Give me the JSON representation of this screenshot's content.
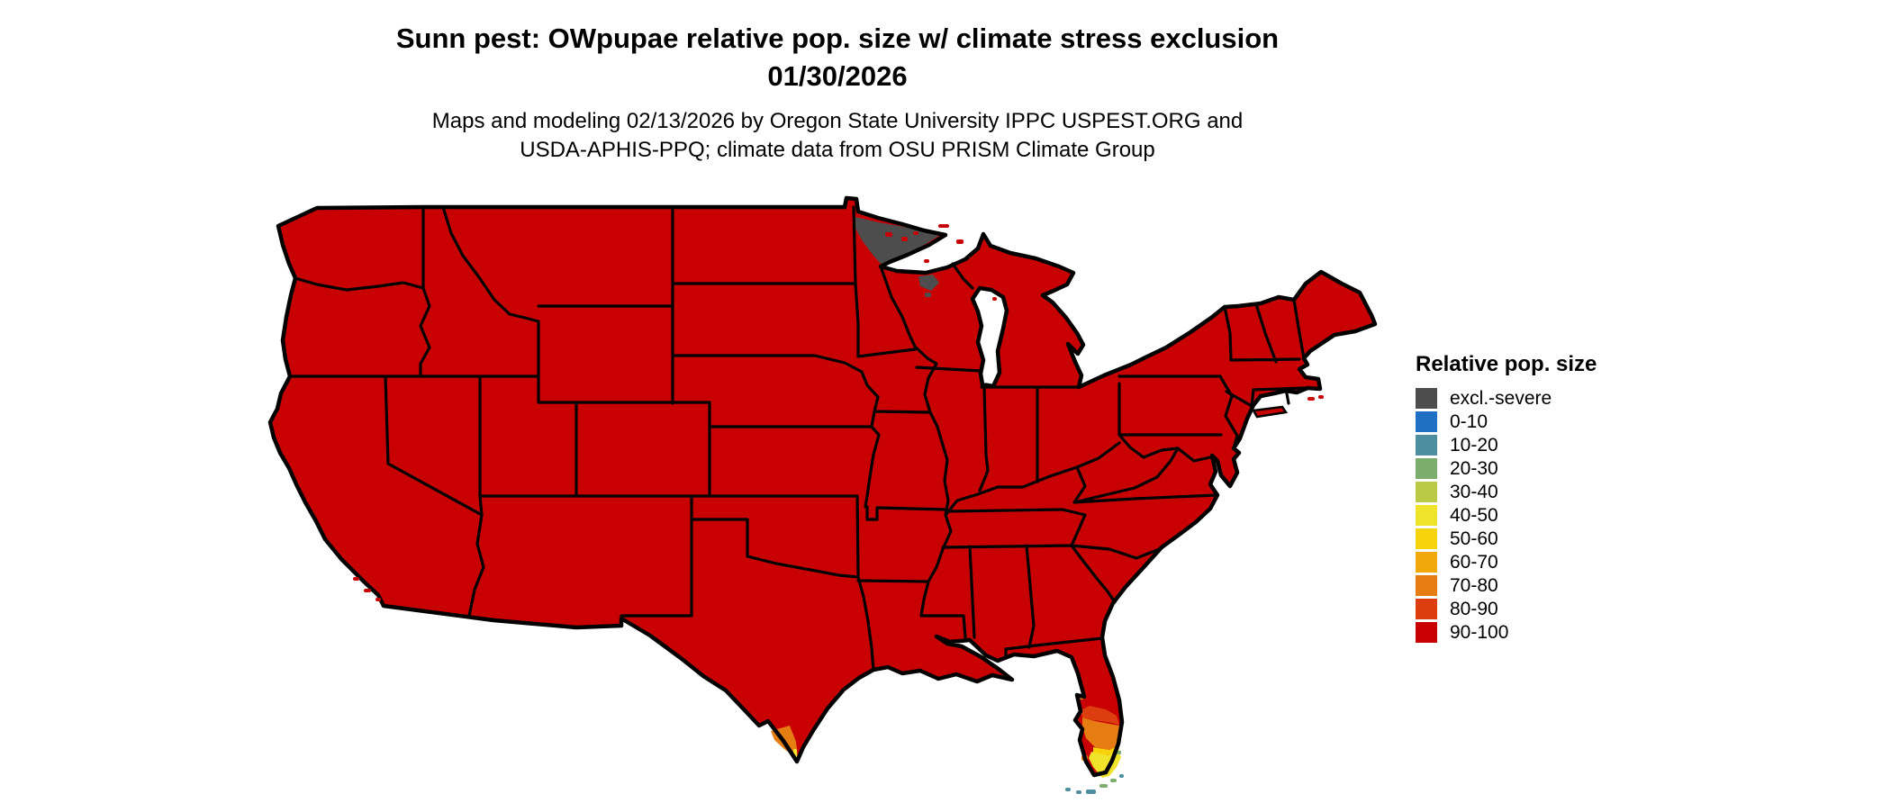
{
  "title": {
    "line1": "Sunn pest: OWpupae relative pop. size w/ climate stress exclusion",
    "line2": "01/30/2026"
  },
  "subtitle": {
    "line1": "Maps and modeling 02/13/2026 by Oregon State University IPPC USPEST.ORG and",
    "line2": "USDA-APHIS-PPQ; climate data from OSU PRISM Climate Group"
  },
  "legend": {
    "title": "Relative pop. size",
    "items": [
      {
        "key": "excl",
        "label": "excl.-severe",
        "color": "#4D4D4D"
      },
      {
        "key": "c0_10",
        "label": "0-10",
        "color": "#1F70C4"
      },
      {
        "key": "c10_20",
        "label": "10-20",
        "color": "#4D8FA0"
      },
      {
        "key": "c20_30",
        "label": "20-30",
        "color": "#7BAD6C"
      },
      {
        "key": "c30_40",
        "label": "30-40",
        "color": "#BBCA46"
      },
      {
        "key": "c40_50",
        "label": "40-50",
        "color": "#EFE42A"
      },
      {
        "key": "c50_60",
        "label": "50-60",
        "color": "#F6D30B"
      },
      {
        "key": "c60_70",
        "label": "60-70",
        "color": "#F1A80B"
      },
      {
        "key": "c70_80",
        "label": "70-80",
        "color": "#E67D12"
      },
      {
        "key": "c80_90",
        "label": "80-90",
        "color": "#DC3E0F"
      },
      {
        "key": "c90_100",
        "label": "90-100",
        "color": "#C80002"
      }
    ]
  },
  "map": {
    "background": "#FFFFFF",
    "border_color": "#000000",
    "regions": [
      {
        "area": "contiguous US (nearly all states)",
        "category": "90-100"
      },
      {
        "area": "northern Minnesota arrowhead",
        "category": "excl.-severe"
      },
      {
        "area": "northern Wisconsin small patch",
        "category": "excl.-severe"
      },
      {
        "area": "southern Texas tip",
        "category": "70-80 with small 40-50 sliver"
      },
      {
        "area": "south Florida",
        "category": "gradient 80-90 / 70-80 / 50-60 / 40-50 toward tip"
      },
      {
        "area": "Florida Keys",
        "category": "10-20 and 20-30"
      }
    ]
  }
}
